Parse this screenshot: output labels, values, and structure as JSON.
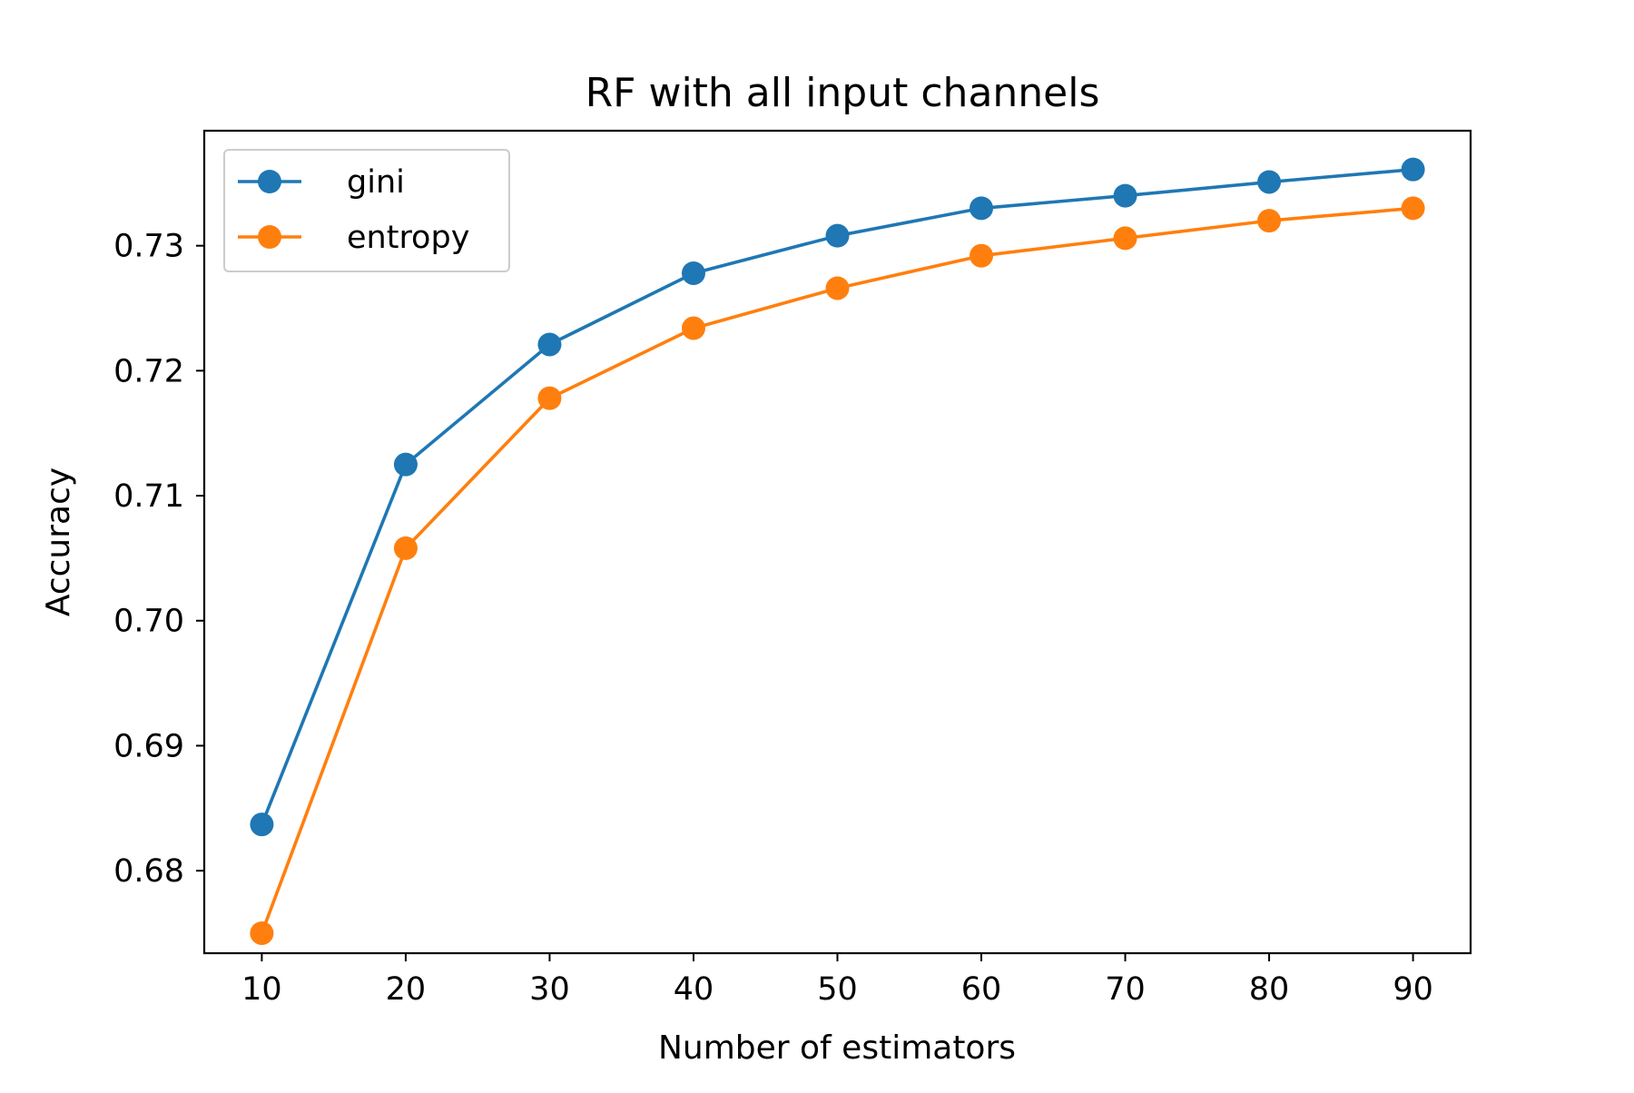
{
  "chart_data": {
    "type": "line",
    "title": "RF with all input channels",
    "xlabel": "Number of estimators",
    "ylabel": "Accuracy",
    "x": [
      10,
      20,
      30,
      40,
      50,
      60,
      70,
      80,
      90
    ],
    "xticks": [
      "10",
      "20",
      "30",
      "40",
      "50",
      "60",
      "70",
      "80",
      "90"
    ],
    "yticks": [
      "0.68",
      "0.69",
      "0.70",
      "0.71",
      "0.72",
      "0.73"
    ],
    "ytick_values": [
      0.68,
      0.69,
      0.7,
      0.71,
      0.72,
      0.73
    ],
    "xlim": [
      6,
      94
    ],
    "ylim": [
      0.6734,
      0.7392
    ],
    "grid": false,
    "legend_position": "top-left",
    "series": [
      {
        "name": "gini",
        "color": "#1f77b4",
        "marker": "circle",
        "values": [
          0.6837,
          0.7125,
          0.7221,
          0.7278,
          0.7308,
          0.733,
          0.734,
          0.7351,
          0.7361
        ]
      },
      {
        "name": "entropy",
        "color": "#ff7f0e",
        "marker": "circle",
        "values": [
          0.675,
          0.7058,
          0.7178,
          0.7234,
          0.7266,
          0.7292,
          0.7306,
          0.732,
          0.733
        ]
      }
    ]
  }
}
